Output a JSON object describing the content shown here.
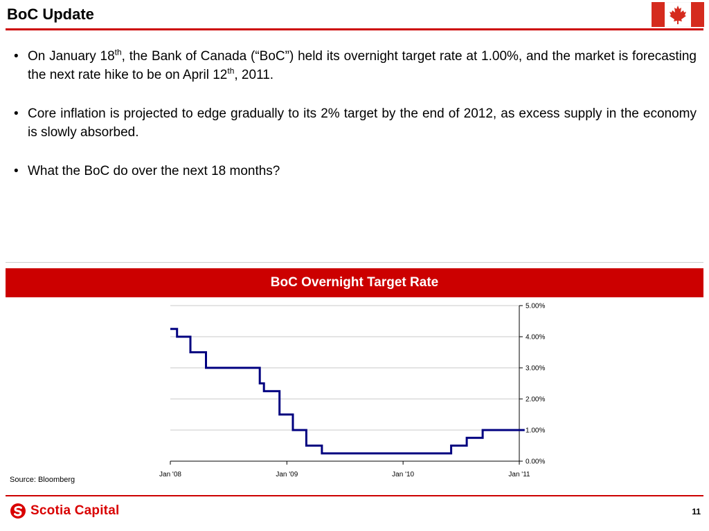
{
  "slide": {
    "title": "BoC Update",
    "page_number": "11",
    "source": "Source: Bloomberg",
    "logo_text": "Scotia Capital",
    "flag_icon": "canada-flag-icon",
    "logo_icon": "scotia-s-icon",
    "accent_color": "#cc0000"
  },
  "bullets": [
    {
      "marker": "•",
      "parts": [
        {
          "text": "On January 18"
        },
        {
          "text": "th",
          "sup": true
        },
        {
          "text": ", the Bank of Canada (“BoC”) held its overnight target rate at 1.00%, and the market is forecasting the next rate hike to be on April 12"
        },
        {
          "text": "th",
          "sup": true
        },
        {
          "text": ", 2011."
        }
      ]
    },
    {
      "marker": "•",
      "parts": [
        {
          "text": "Core inflation is projected to edge gradually to its 2% target by the end of 2012, as excess supply in the economy is slowly absorbed."
        }
      ]
    },
    {
      "marker": "•",
      "parts": [
        {
          "text": "What the BoC do over the next 18 months?"
        }
      ]
    }
  ],
  "chart_data": {
    "type": "line",
    "title": "BoC Overnight Target Rate",
    "xlabel": "",
    "ylabel": "",
    "x_ticks": [
      "Jan '08",
      "Jan '09",
      "Jan '10",
      "Jan '11"
    ],
    "y_ticks": [
      "0.00%",
      "1.00%",
      "2.00%",
      "3.00%",
      "4.00%",
      "5.00%"
    ],
    "ylim": [
      0,
      5
    ],
    "xlim": [
      "2008-01-01",
      "2011-01-18"
    ],
    "grid": true,
    "y_axis_position": "right",
    "line_color": "#000080",
    "series": [
      {
        "step": true,
        "points": [
          {
            "x": "2008-01-01",
            "y": 4.25
          },
          {
            "x": "2008-01-22",
            "y": 4.0
          },
          {
            "x": "2008-03-04",
            "y": 3.5
          },
          {
            "x": "2008-04-22",
            "y": 3.0
          },
          {
            "x": "2008-10-08",
            "y": 2.5
          },
          {
            "x": "2008-10-21",
            "y": 2.25
          },
          {
            "x": "2008-12-09",
            "y": 1.5
          },
          {
            "x": "2009-01-20",
            "y": 1.0
          },
          {
            "x": "2009-03-03",
            "y": 0.5
          },
          {
            "x": "2009-04-21",
            "y": 0.25
          },
          {
            "x": "2010-06-01",
            "y": 0.5
          },
          {
            "x": "2010-07-20",
            "y": 0.75
          },
          {
            "x": "2010-09-08",
            "y": 1.0
          },
          {
            "x": "2011-01-18",
            "y": 1.0
          }
        ]
      }
    ]
  }
}
